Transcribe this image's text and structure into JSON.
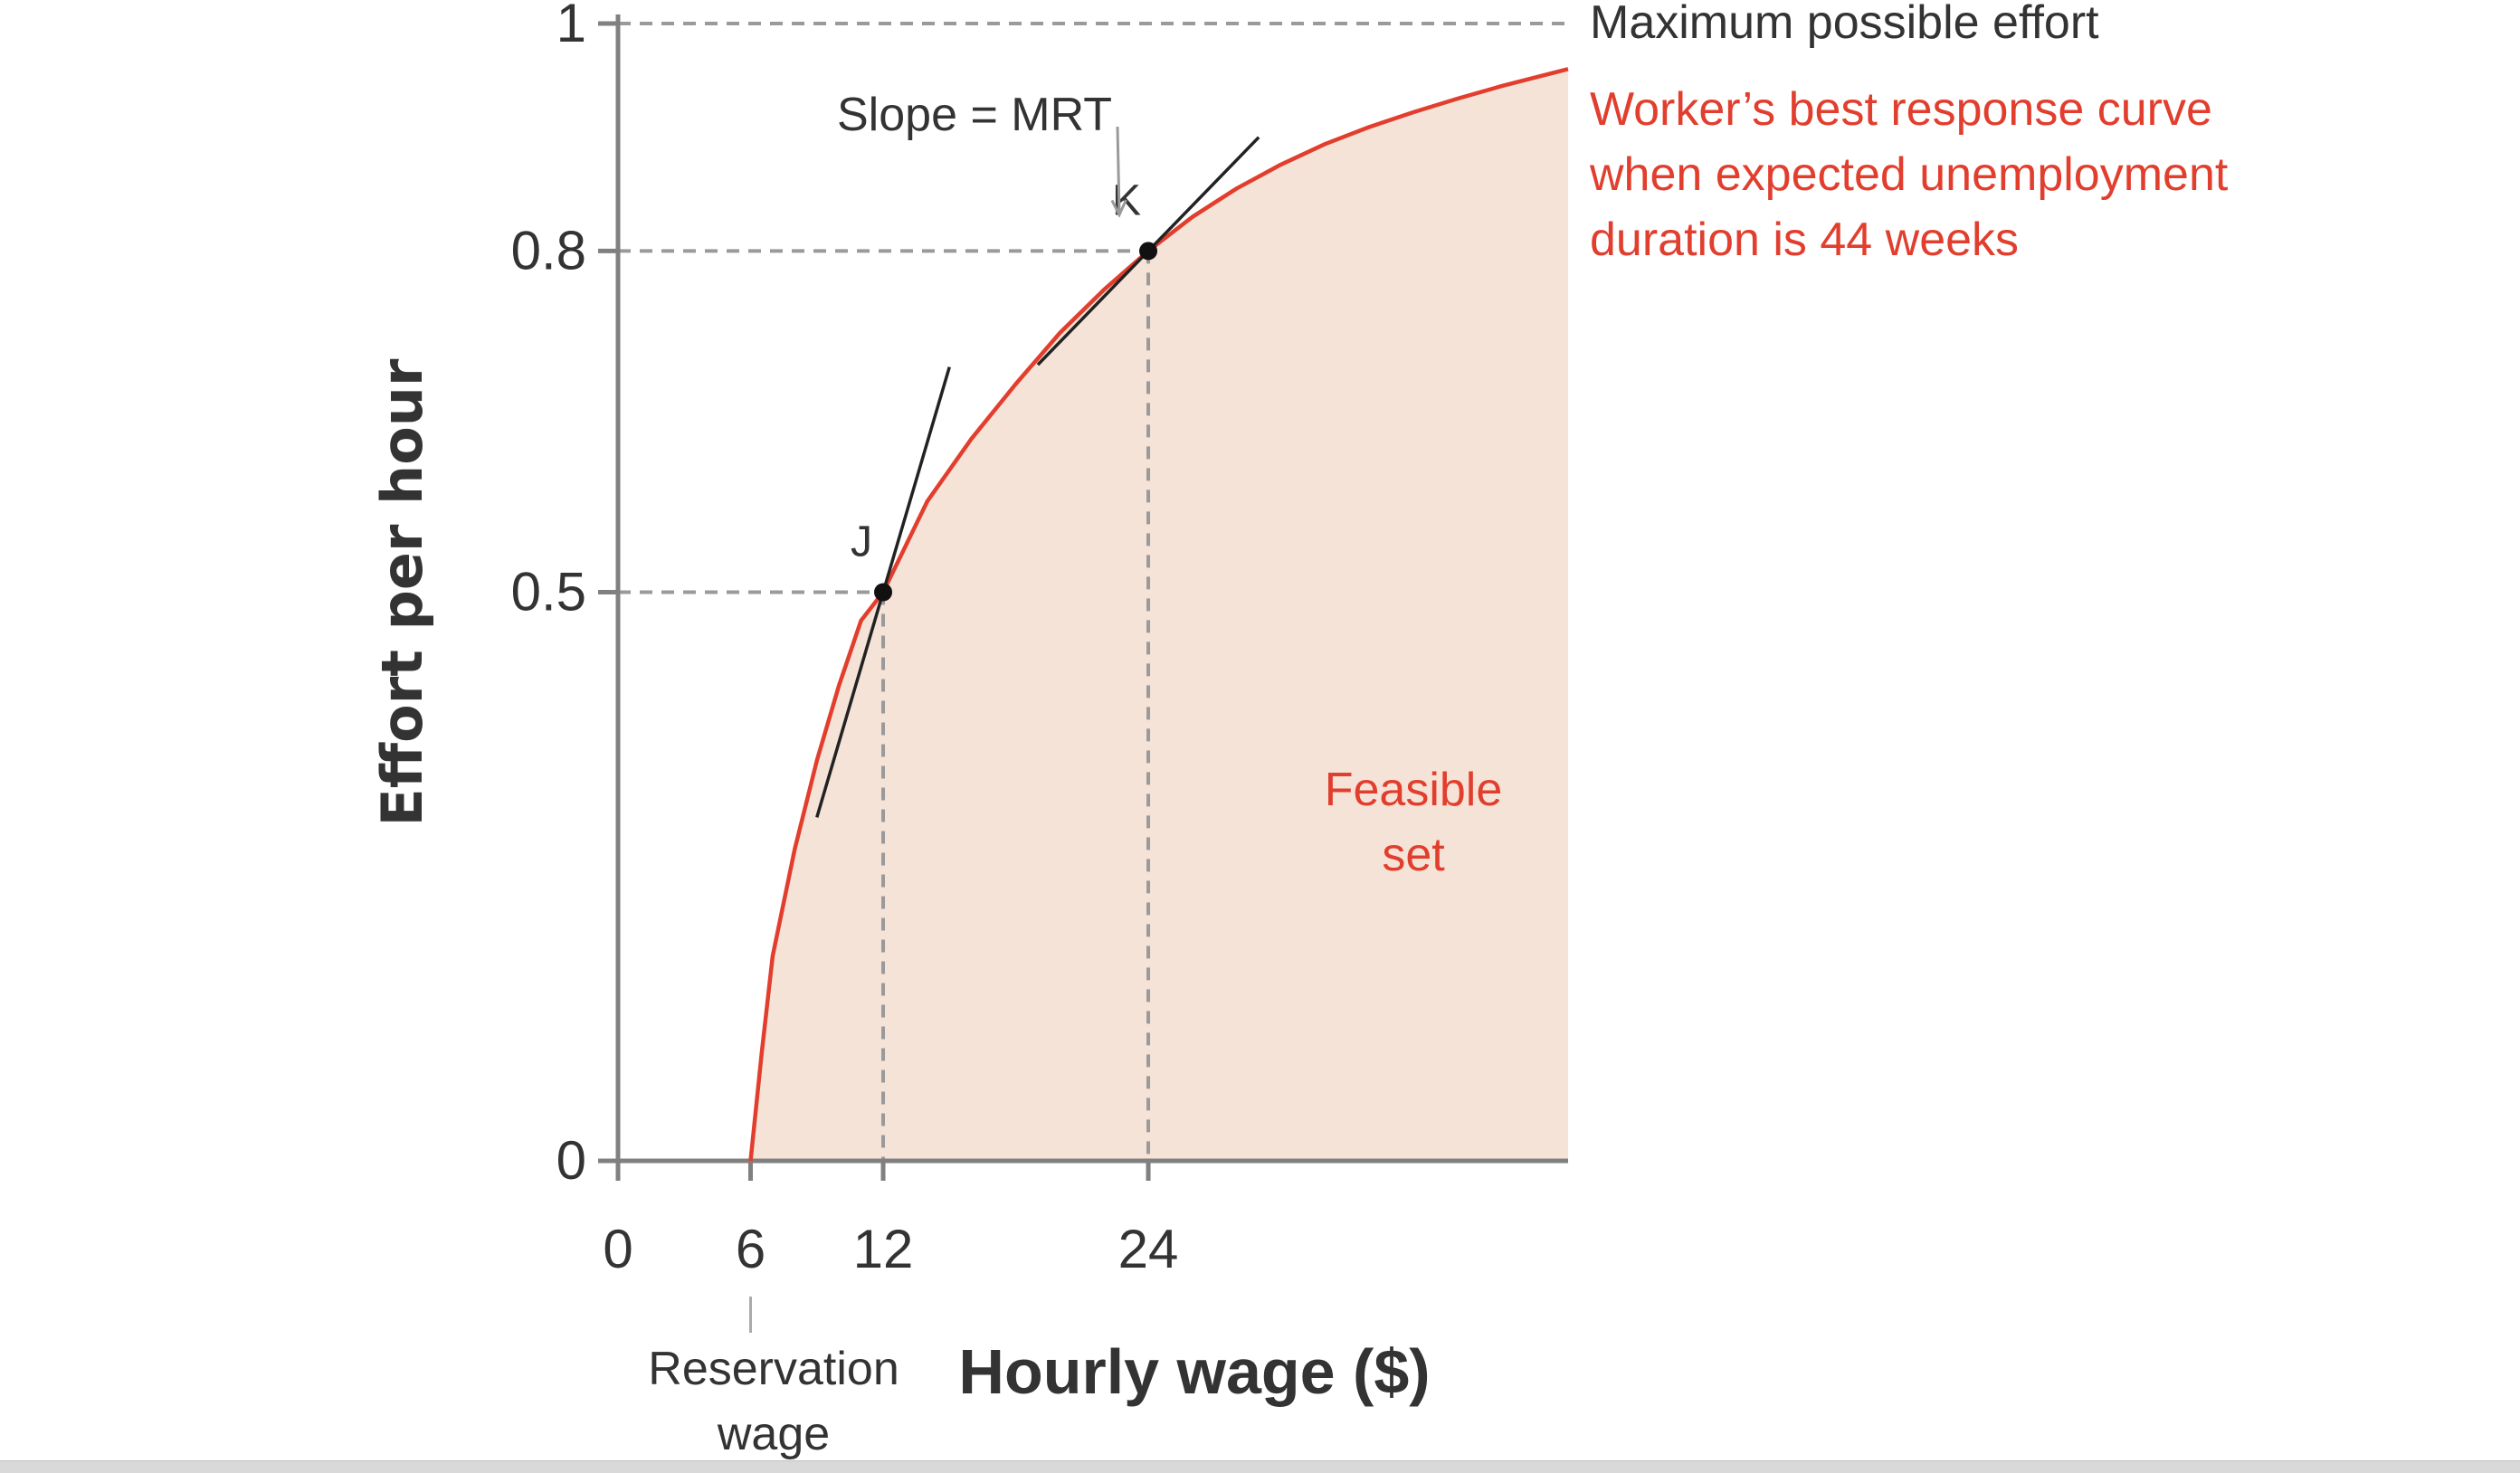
{
  "chart_data": {
    "type": "line",
    "xlabel": "Hourly wage ($)",
    "ylabel": "Effort per hour",
    "xlim": [
      0,
      43
    ],
    "ylim": [
      0,
      1
    ],
    "x_ticks": [
      0,
      6,
      12,
      24
    ],
    "x_tick_labels": [
      "0",
      "6",
      "12",
      "24"
    ],
    "y_ticks": [
      0,
      0.5,
      0.8,
      1
    ],
    "y_tick_labels": [
      "0",
      "0.5",
      "0.8",
      "1"
    ],
    "grid": false,
    "legend": "none",
    "colors": {
      "curve": "#e23e2e",
      "feasible_fill": "#f6e3d7",
      "axis": "#808080",
      "dashed": "#9a9a9a",
      "tangent": "#222222",
      "text": "#333333",
      "red_text": "#e23e2e"
    },
    "series": [
      {
        "name": "Worker’s best response curve when expected unemployment duration is 44 weeks",
        "x": [
          6,
          6.5,
          7,
          8,
          9,
          10,
          11,
          12,
          14,
          16,
          18,
          20,
          22,
          24,
          26,
          28,
          30,
          32,
          34,
          36,
          38,
          40,
          43
        ],
        "y": [
          0,
          0.094,
          0.18,
          0.274,
          0.352,
          0.418,
          0.475,
          0.5,
          0.58,
          0.635,
          0.683,
          0.728,
          0.766,
          0.8,
          0.83,
          0.855,
          0.876,
          0.894,
          0.909,
          0.922,
          0.934,
          0.945,
          0.96
        ]
      }
    ],
    "points": [
      {
        "label": "J",
        "x": 12,
        "y": 0.5
      },
      {
        "label": "K",
        "x": 24,
        "y": 0.8
      }
    ],
    "tangents": [
      {
        "point": "J",
        "slope": 0.066,
        "x_range": [
          9,
          15
        ]
      },
      {
        "point": "K",
        "slope": 0.02,
        "x_range": [
          19,
          29
        ]
      }
    ],
    "reference_lines": [
      {
        "type": "horizontal",
        "y": 1,
        "label": "Maximum possible effort"
      }
    ],
    "annotations": {
      "max_effort": "Maximum possible effort",
      "curve_label_lines": [
        "Worker’s best response curve",
        "when expected unemployment",
        "duration is 44 weeks"
      ],
      "slope_label": "Slope = MRT",
      "feasible_set_lines": [
        "Feasible",
        "set"
      ],
      "reservation_wage_lines": [
        "Reservation",
        "wage"
      ]
    }
  }
}
